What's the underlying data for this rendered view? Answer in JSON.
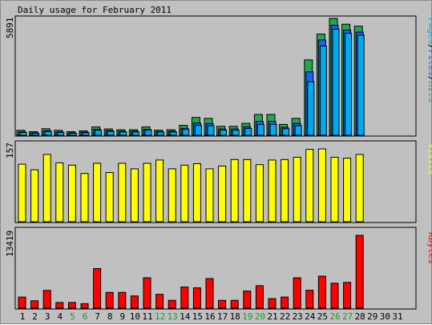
{
  "chart_data": {
    "type": "bar",
    "title": "Daily usage for February 2011",
    "categories": [
      "1",
      "2",
      "3",
      "4",
      "5",
      "6",
      "7",
      "8",
      "9",
      "10",
      "11",
      "12",
      "13",
      "14",
      "15",
      "16",
      "17",
      "18",
      "19",
      "20",
      "21",
      "22",
      "23",
      "24",
      "25",
      "26",
      "27",
      "28",
      "29",
      "30",
      "31"
    ],
    "weekend_days": [
      5,
      6,
      12,
      13,
      19,
      20,
      26,
      27
    ],
    "day_label_colors": {
      "weekday": "#000000",
      "weekend": "#1a9a2a"
    },
    "panels": [
      {
        "id": "hits-files-pages",
        "ymax_label": "5891",
        "ymax": 5891,
        "legend": [
          {
            "text": "Pages",
            "color": "#00aaee"
          },
          {
            "text": "/",
            "color": "#000000"
          },
          {
            "text": "Files",
            "color": "#1e60ff"
          },
          {
            "text": "/",
            "color": "#000000"
          },
          {
            "text": "Hits",
            "color": "#1fa84f"
          }
        ],
        "series": [
          {
            "name": "Hits",
            "color": "#1fa84f",
            "values": [
              250,
              180,
              330,
              250,
              180,
              220,
              420,
              320,
              280,
              280,
              420,
              260,
              280,
              500,
              900,
              850,
              450,
              450,
              600,
              1050,
              1050,
              550,
              850,
              3800,
              5100,
              5891,
              5600,
              5500,
              0,
              0,
              0
            ]
          },
          {
            "name": "Files",
            "color": "#1e60ff",
            "values": [
              170,
              120,
              230,
              170,
              120,
              160,
              300,
              240,
              200,
              200,
              300,
              190,
              200,
              350,
              620,
              590,
              320,
              320,
              420,
              700,
              700,
              400,
              600,
              3200,
              4800,
              5550,
              5300,
              5200,
              0,
              0,
              0
            ]
          },
          {
            "name": "Pages",
            "color": "#00aaee",
            "values": [
              140,
              100,
              190,
              140,
              100,
              130,
              250,
              200,
              170,
              170,
              260,
              160,
              170,
              300,
              500,
              480,
              260,
              260,
              340,
              550,
              550,
              330,
              480,
              2700,
              4500,
              5350,
              5150,
              5050,
              0,
              0,
              0
            ]
          }
        ]
      },
      {
        "id": "visits",
        "ymax_label": "157",
        "ymax": 157,
        "legend": [
          {
            "text": "Visits",
            "color": "#ffff00"
          }
        ],
        "series": [
          {
            "name": "Visits",
            "color": "#ffff00",
            "values": [
              124,
              112,
              145,
              127,
              122,
              104,
              126,
              106,
              126,
              114,
              126,
              133,
              114,
              122,
              125,
              114,
              120,
              134,
              134,
              123,
              133,
              134,
              139,
              156,
              157,
              139,
              137,
              145,
              0,
              0,
              0
            ]
          }
        ]
      },
      {
        "id": "kbytes",
        "ymax_label": "13419",
        "ymax": 13419,
        "legend": [
          {
            "text": "KBytes",
            "color": "#ff0000"
          }
        ],
        "series": [
          {
            "name": "KBytes",
            "color": "#ff0000",
            "values": [
              2050,
              1350,
              3280,
              1050,
              1050,
              820,
              7300,
              2900,
              2900,
              2250,
              5600,
              2550,
              1450,
              3900,
              3750,
              5450,
              1450,
              1450,
              3150,
              4150,
              1750,
              2050,
              5600,
              3300,
              5900,
              4600,
              4750,
              13419,
              0,
              0,
              0
            ]
          }
        ]
      }
    ]
  }
}
